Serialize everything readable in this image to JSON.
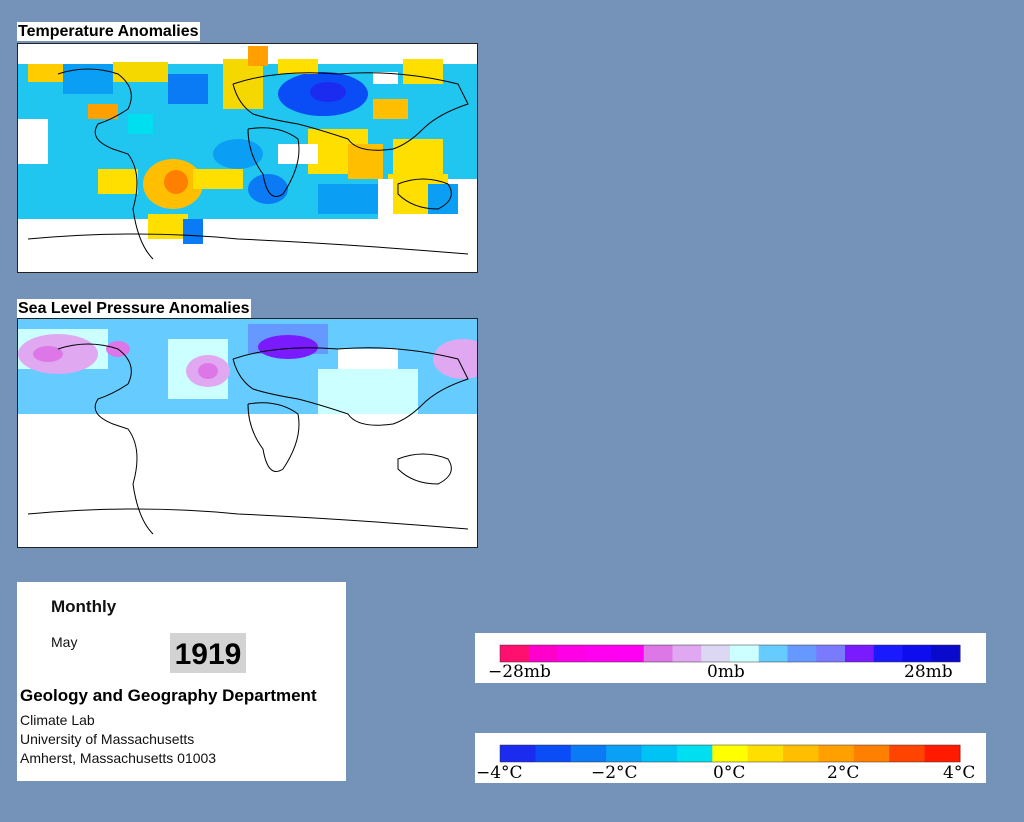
{
  "panels": {
    "temperature": {
      "title": "Temperature Anomalies"
    },
    "pressure": {
      "title": "Sea Level Pressure Anomalies"
    }
  },
  "info": {
    "period": "Monthly",
    "month": "May",
    "year": "1919",
    "department": "Geology and Geography Department",
    "lab": "Climate Lab",
    "university": "University of Massachusetts",
    "address": "Amherst, Massachusetts 01003"
  },
  "pressure_legend": {
    "labels": [
      "−28mb",
      "0mb",
      "28mb"
    ],
    "colors": [
      "#ff0f6e",
      "#ff00cc",
      "#ff00e6",
      "#ff00f0",
      "#ff00f5",
      "#dd77e8",
      "#e0a8f0",
      "#dcd8f4",
      "#ccffff",
      "#66ccff",
      "#6699ff",
      "#7a7aff",
      "#7a1aff",
      "#1a1aff",
      "#0d0dee",
      "#0a0acc"
    ]
  },
  "temperature_legend": {
    "labels": [
      "−4°C",
      "−2°C",
      "0°C",
      "2°C",
      "4°C"
    ],
    "colors": [
      "#1b2cf0",
      "#0a4cf5",
      "#0a7af5",
      "#0aa0f5",
      "#00c3f5",
      "#00dff0",
      "#ffff00",
      "#ffdf00",
      "#ffbf00",
      "#ff9f00",
      "#ff7f00",
      "#ff4400",
      "#ff1a00"
    ]
  }
}
